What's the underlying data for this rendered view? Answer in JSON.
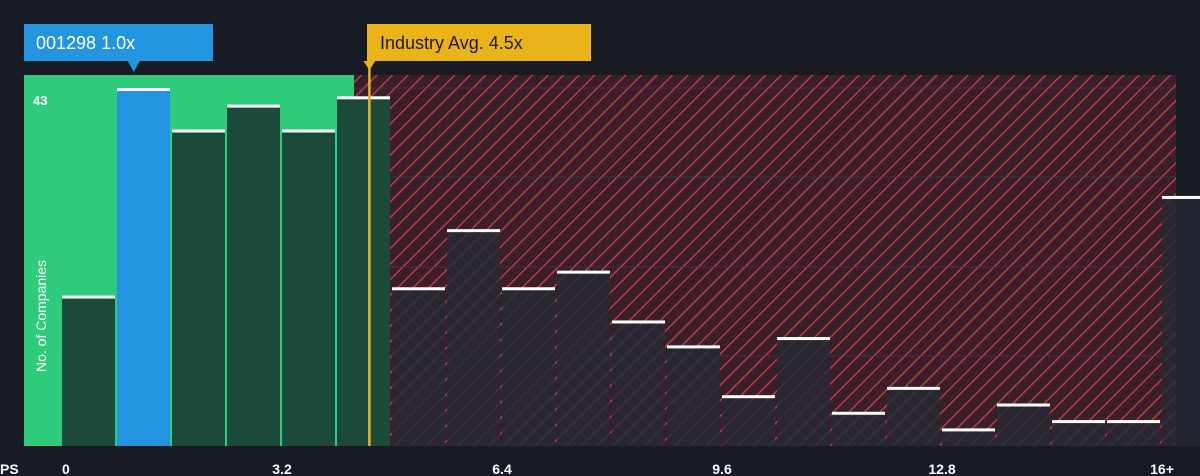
{
  "chart_data": {
    "type": "bar",
    "xlabel": "PS",
    "ylabel": "No. of Companies",
    "x_ticks": [
      {
        "value": 0,
        "label": "0"
      },
      {
        "value": 3.2,
        "label": "3.2"
      },
      {
        "value": 6.4,
        "label": "6.4"
      },
      {
        "value": 9.6,
        "label": "9.6"
      },
      {
        "value": 12.8,
        "label": "12.8"
      },
      {
        "value": 16,
        "label": "16+"
      }
    ],
    "y_max_label": "43",
    "ylim": [
      0,
      43
    ],
    "bin_width": 0.8,
    "bins": [
      {
        "start": 0.0,
        "value": 18
      },
      {
        "start": 0.8,
        "value": 43
      },
      {
        "start": 1.6,
        "value": 38
      },
      {
        "start": 2.4,
        "value": 41
      },
      {
        "start": 3.2,
        "value": 38
      },
      {
        "start": 4.0,
        "value": 42
      },
      {
        "start": 4.8,
        "value": 19
      },
      {
        "start": 5.6,
        "value": 26
      },
      {
        "start": 6.4,
        "value": 19
      },
      {
        "start": 7.2,
        "value": 21
      },
      {
        "start": 8.0,
        "value": 15
      },
      {
        "start": 8.8,
        "value": 12
      },
      {
        "start": 9.6,
        "value": 6
      },
      {
        "start": 10.4,
        "value": 13
      },
      {
        "start": 11.2,
        "value": 4
      },
      {
        "start": 12.0,
        "value": 7
      },
      {
        "start": 12.8,
        "value": 2
      },
      {
        "start": 13.6,
        "value": 5
      },
      {
        "start": 14.4,
        "value": 3
      },
      {
        "start": 15.2,
        "value": 3
      },
      {
        "start": 16.0,
        "value": 30
      }
    ],
    "company": {
      "label": "001298 1.0x",
      "value": 1.0,
      "bin_index": 1
    },
    "industry": {
      "label": "Industry Avg. 4.5x",
      "value": 4.5
    },
    "colors": {
      "background": "#161b24",
      "fair_zone": "#2ecc7a",
      "fair_bar": "#1c4a3a",
      "company_bar": "#2394e0",
      "company_label_bg": "#2394e0",
      "industry_label_bg": "#eab319",
      "hatch_bg": "#3a1f2a",
      "hatch_line": "#d9434c",
      "bar_cap": "#ffffff",
      "over_bar": "#262a34",
      "grid": "#3b414d"
    }
  }
}
